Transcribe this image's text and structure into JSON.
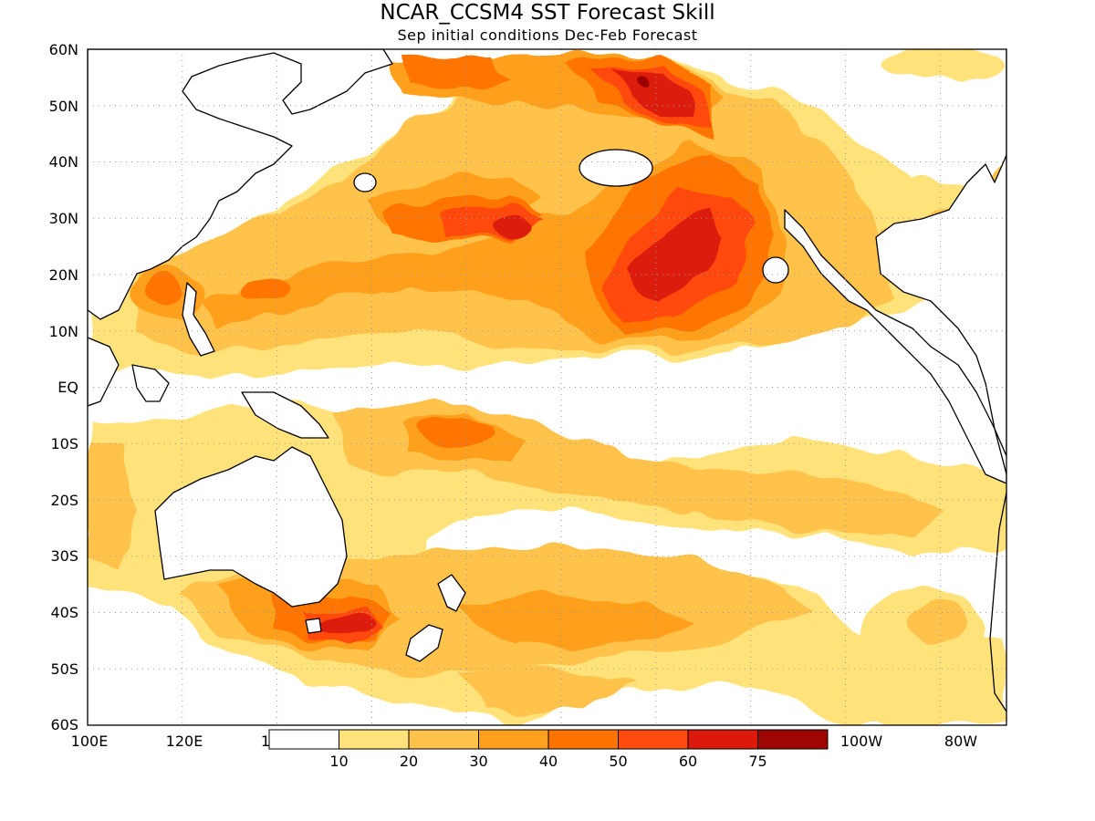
{
  "title": "NCAR_CCSM4 SST Forecast Skill",
  "subtitle": "Sep initial conditions  Dec-Feb Forecast",
  "lat_labels": [
    "60N",
    "50N",
    "40N",
    "30N",
    "20N",
    "10N",
    "EQ",
    "10S",
    "20S",
    "30S",
    "40S",
    "50S",
    "60S"
  ],
  "lon_labels": [
    "100E",
    "120E",
    "100W",
    "80W"
  ],
  "colorbar": {
    "lead_label": "1",
    "bounds": [
      "10",
      "20",
      "30",
      "40",
      "50",
      "60",
      "75"
    ],
    "colors": [
      "#ffffff",
      "#ffe27a",
      "#ffc24b",
      "#ffa01e",
      "#ff7400",
      "#ff4a0f",
      "#dc1a0b",
      "#9e0604"
    ]
  }
}
